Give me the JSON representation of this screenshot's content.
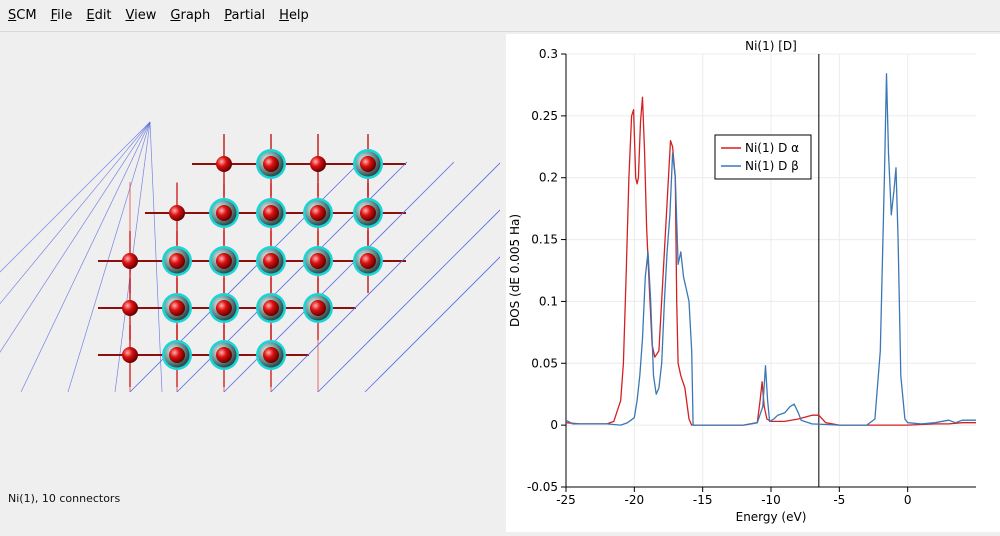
{
  "menu": {
    "items": [
      {
        "label": "SCM",
        "underline": "S",
        "rest": "CM"
      },
      {
        "label": "File",
        "underline": "F",
        "rest": "ile"
      },
      {
        "label": "Edit",
        "underline": "E",
        "rest": "dit"
      },
      {
        "label": "View",
        "underline": "V",
        "rest": "iew"
      },
      {
        "label": "Graph",
        "underline": "G",
        "rest": "raph"
      },
      {
        "label": "Partial",
        "underline": "P",
        "rest": "artial"
      },
      {
        "label": "Help",
        "underline": "H",
        "rest": "elp"
      }
    ]
  },
  "viewer": {
    "status": "Ni(1), 10 connectors",
    "atom_colors": {
      "oxygen": "#dd1111",
      "nickel": "#7fa8a4",
      "halo": "#19d4d8"
    }
  },
  "chart_data": {
    "type": "line",
    "title": "Ni(1)  [D]",
    "xlabel": "Energy (eV)",
    "ylabel": "DOS (dE 0.005 Ha)",
    "xlim": [
      -25,
      5
    ],
    "ylim": [
      -0.05,
      0.3
    ],
    "xticks": [
      "-25",
      "-20",
      "-15",
      "-10",
      "-5",
      "0"
    ],
    "xtick_values": [
      -25,
      -20,
      -15,
      -10,
      -5,
      0
    ],
    "yticks": [
      "-0.05",
      "0",
      "0.05",
      "0.1",
      "0.15",
      "0.2",
      "0.25",
      "0.3"
    ],
    "ytick_values": [
      -0.05,
      0,
      0.05,
      0.1,
      0.15,
      0.2,
      0.25,
      0.3
    ],
    "grid": true,
    "legend_position": "top-center",
    "fermi_level": -6.5,
    "series": [
      {
        "name": "Ni(1) D α",
        "color": "#d42020",
        "points": [
          [
            -25,
            0.002
          ],
          [
            -24,
            0.001
          ],
          [
            -23,
            0.001
          ],
          [
            -22,
            0.001
          ],
          [
            -21.5,
            0.003
          ],
          [
            -21,
            0.02
          ],
          [
            -20.8,
            0.05
          ],
          [
            -20.6,
            0.12
          ],
          [
            -20.4,
            0.2
          ],
          [
            -20.2,
            0.25
          ],
          [
            -20.05,
            0.255
          ],
          [
            -19.9,
            0.2
          ],
          [
            -19.8,
            0.195
          ],
          [
            -19.7,
            0.2
          ],
          [
            -19.55,
            0.245
          ],
          [
            -19.4,
            0.265
          ],
          [
            -19.25,
            0.22
          ],
          [
            -19.1,
            0.16
          ],
          [
            -18.9,
            0.11
          ],
          [
            -18.7,
            0.065
          ],
          [
            -18.5,
            0.055
          ],
          [
            -18.2,
            0.06
          ],
          [
            -17.9,
            0.12
          ],
          [
            -17.6,
            0.18
          ],
          [
            -17.35,
            0.23
          ],
          [
            -17.2,
            0.225
          ],
          [
            -17.0,
            0.2
          ],
          [
            -16.9,
            0.1
          ],
          [
            -16.8,
            0.05
          ],
          [
            -16.6,
            0.04
          ],
          [
            -16.3,
            0.03
          ],
          [
            -16.0,
            0.005
          ],
          [
            -15.8,
            0.0
          ],
          [
            -12,
            0.0
          ],
          [
            -11,
            0.002
          ],
          [
            -10.8,
            0.02
          ],
          [
            -10.65,
            0.035
          ],
          [
            -10.5,
            0.015
          ],
          [
            -10.3,
            0.005
          ],
          [
            -10,
            0.003
          ],
          [
            -9,
            0.003
          ],
          [
            -8,
            0.005
          ],
          [
            -7,
            0.008
          ],
          [
            -6.5,
            0.008
          ],
          [
            -6,
            0.002
          ],
          [
            -5,
            0.0
          ],
          [
            -3,
            0.0
          ],
          [
            0,
            0.0
          ],
          [
            2,
            0.001
          ],
          [
            3,
            0.001
          ],
          [
            4,
            0.002
          ],
          [
            5,
            0.002
          ]
        ]
      },
      {
        "name": "Ni(1) D β",
        "color": "#3a78b5",
        "points": [
          [
            -25,
            0.004
          ],
          [
            -24.5,
            0.001
          ],
          [
            -23,
            0.001
          ],
          [
            -22,
            0.001
          ],
          [
            -21,
            0.0
          ],
          [
            -20.5,
            0.002
          ],
          [
            -20,
            0.006
          ],
          [
            -19.8,
            0.02
          ],
          [
            -19.6,
            0.04
          ],
          [
            -19.4,
            0.07
          ],
          [
            -19.2,
            0.12
          ],
          [
            -19.0,
            0.14
          ],
          [
            -18.8,
            0.1
          ],
          [
            -18.6,
            0.04
          ],
          [
            -18.4,
            0.025
          ],
          [
            -18.2,
            0.03
          ],
          [
            -18.0,
            0.05
          ],
          [
            -17.8,
            0.1
          ],
          [
            -17.6,
            0.14
          ],
          [
            -17.4,
            0.17
          ],
          [
            -17.2,
            0.22
          ],
          [
            -17.0,
            0.2
          ],
          [
            -16.8,
            0.13
          ],
          [
            -16.6,
            0.14
          ],
          [
            -16.4,
            0.12
          ],
          [
            -16.2,
            0.11
          ],
          [
            -16.0,
            0.1
          ],
          [
            -15.8,
            0.06
          ],
          [
            -15.7,
            0.0
          ],
          [
            -15,
            0.0
          ],
          [
            -12,
            0.0
          ],
          [
            -11,
            0.002
          ],
          [
            -10.6,
            0.015
          ],
          [
            -10.4,
            0.048
          ],
          [
            -10.25,
            0.02
          ],
          [
            -10.1,
            0.003
          ],
          [
            -9.8,
            0.005
          ],
          [
            -9.5,
            0.008
          ],
          [
            -9,
            0.01
          ],
          [
            -8.6,
            0.015
          ],
          [
            -8.3,
            0.017
          ],
          [
            -8.0,
            0.01
          ],
          [
            -7.8,
            0.004
          ],
          [
            -7,
            0.001
          ],
          [
            -5,
            0.0
          ],
          [
            -3,
            0.0
          ],
          [
            -2.4,
            0.005
          ],
          [
            -2.0,
            0.06
          ],
          [
            -1.7,
            0.2
          ],
          [
            -1.55,
            0.284
          ],
          [
            -1.4,
            0.22
          ],
          [
            -1.2,
            0.17
          ],
          [
            -1.0,
            0.19
          ],
          [
            -0.85,
            0.208
          ],
          [
            -0.7,
            0.15
          ],
          [
            -0.5,
            0.04
          ],
          [
            -0.2,
            0.005
          ],
          [
            0,
            0.002
          ],
          [
            1,
            0.001
          ],
          [
            2,
            0.002
          ],
          [
            3,
            0.004
          ],
          [
            3.5,
            0.002
          ],
          [
            4,
            0.004
          ],
          [
            5,
            0.004
          ]
        ]
      }
    ]
  }
}
